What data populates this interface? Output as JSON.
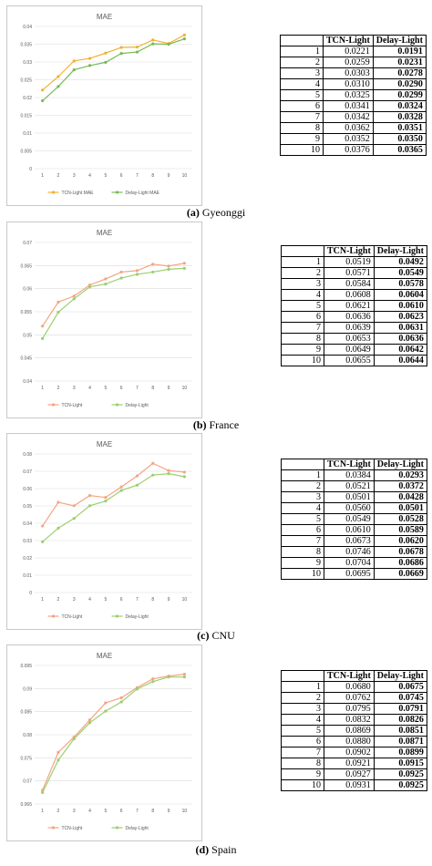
{
  "table_headers": {
    "blank": "",
    "tcn": "TCN-Light",
    "delay": "Delay-Light"
  },
  "colors": {
    "tcn": "#f2b134",
    "delay": "#77bb55",
    "tcn_b": "#f4a582",
    "delay_b": "#9ccf6f",
    "grid": "#d9d9d9",
    "axis_text": "#595959"
  },
  "panels": [
    {
      "caption": {
        "letter": "(a)",
        "name": "Gyeonggi"
      },
      "chart_data": {
        "type": "line",
        "title": "MAE",
        "x": [
          1,
          2,
          3,
          4,
          5,
          6,
          7,
          8,
          9,
          10
        ],
        "ylim": [
          0,
          0.04
        ],
        "yticks": [
          0,
          0.005,
          0.01,
          0.015,
          0.02,
          0.025,
          0.03,
          0.035,
          0.04
        ],
        "ytick_labels": [
          "0",
          "0.005",
          "0.01",
          "0.015",
          "0.02",
          "0.025",
          "0.03",
          "0.035",
          "0.04"
        ],
        "legend": "bottom",
        "series": [
          {
            "name": "TCN-Light MAE",
            "values": [
              0.0221,
              0.0259,
              0.0303,
              0.031,
              0.0325,
              0.0341,
              0.0342,
              0.0362,
              0.0352,
              0.0376
            ]
          },
          {
            "name": "Delay-Light MAE",
            "values": [
              0.0191,
              0.0231,
              0.0278,
              0.029,
              0.0299,
              0.0324,
              0.0328,
              0.0351,
              0.035,
              0.0365
            ]
          }
        ]
      },
      "rows": [
        {
          "idx": "1",
          "tcn": "0.0221",
          "delay": "0.0191"
        },
        {
          "idx": "2",
          "tcn": "0.0259",
          "delay": "0.0231"
        },
        {
          "idx": "3",
          "tcn": "0.0303",
          "delay": "0.0278"
        },
        {
          "idx": "4",
          "tcn": "0.0310",
          "delay": "0.0290"
        },
        {
          "idx": "5",
          "tcn": "0.0325",
          "delay": "0.0299"
        },
        {
          "idx": "6",
          "tcn": "0.0341",
          "delay": "0.0324"
        },
        {
          "idx": "7",
          "tcn": "0.0342",
          "delay": "0.0328"
        },
        {
          "idx": "8",
          "tcn": "0.0362",
          "delay": "0.0351"
        },
        {
          "idx": "9",
          "tcn": "0.0352",
          "delay": "0.0350"
        },
        {
          "idx": "10",
          "tcn": "0.0376",
          "delay": "0.0365"
        }
      ]
    },
    {
      "caption": {
        "letter": "(b)",
        "name": "France"
      },
      "chart_data": {
        "type": "line",
        "title": "MAE",
        "x": [
          1,
          2,
          3,
          4,
          5,
          6,
          7,
          8,
          9,
          10
        ],
        "ylim": [
          0.04,
          0.07
        ],
        "yticks": [
          0.04,
          0.045,
          0.05,
          0.055,
          0.06,
          0.065,
          0.07
        ],
        "ytick_labels": [
          "0.04",
          "0.045",
          "0.05",
          "0.055",
          "0.06",
          "0.065",
          "0.07"
        ],
        "legend": "bottom",
        "series": [
          {
            "name": "TCN-Light",
            "values": [
              0.0519,
              0.0571,
              0.0584,
              0.0608,
              0.0621,
              0.0636,
              0.0639,
              0.0653,
              0.0649,
              0.0655
            ]
          },
          {
            "name": "Delay-Light",
            "values": [
              0.0492,
              0.0549,
              0.0578,
              0.0604,
              0.061,
              0.0623,
              0.0631,
              0.0636,
              0.0642,
              0.0644
            ]
          }
        ]
      },
      "rows": [
        {
          "idx": "1",
          "tcn": "0.0519",
          "delay": "0.0492"
        },
        {
          "idx": "2",
          "tcn": "0.0571",
          "delay": "0.0549"
        },
        {
          "idx": "3",
          "tcn": "0.0584",
          "delay": "0.0578"
        },
        {
          "idx": "4",
          "tcn": "0.0608",
          "delay": "0.0604"
        },
        {
          "idx": "5",
          "tcn": "0.0621",
          "delay": "0.0610"
        },
        {
          "idx": "6",
          "tcn": "0.0636",
          "delay": "0.0623"
        },
        {
          "idx": "7",
          "tcn": "0.0639",
          "delay": "0.0631"
        },
        {
          "idx": "8",
          "tcn": "0.0653",
          "delay": "0.0636"
        },
        {
          "idx": "9",
          "tcn": "0.0649",
          "delay": "0.0642"
        },
        {
          "idx": "10",
          "tcn": "0.0655",
          "delay": "0.0644"
        }
      ]
    },
    {
      "caption": {
        "letter": "(c)",
        "name": "CNU"
      },
      "chart_data": {
        "type": "line",
        "title": "MAE",
        "x": [
          1,
          2,
          3,
          4,
          5,
          6,
          7,
          8,
          9,
          10
        ],
        "ylim": [
          0,
          0.08
        ],
        "yticks": [
          0,
          0.01,
          0.02,
          0.03,
          0.04,
          0.05,
          0.06,
          0.07,
          0.08
        ],
        "ytick_labels": [
          "0",
          "0.01",
          "0.02",
          "0.03",
          "0.04",
          "0.05",
          "0.06",
          "0.07",
          "0.08"
        ],
        "legend": "bottom",
        "series": [
          {
            "name": "TCN-Light",
            "values": [
              0.0384,
              0.0521,
              0.0501,
              0.056,
              0.0549,
              0.061,
              0.0673,
              0.0746,
              0.0704,
              0.0695
            ]
          },
          {
            "name": "Delay-Light",
            "values": [
              0.0293,
              0.0372,
              0.0428,
              0.0501,
              0.0528,
              0.0589,
              0.062,
              0.0678,
              0.0686,
              0.0669
            ]
          }
        ]
      },
      "rows": [
        {
          "idx": "1",
          "tcn": "0.0384",
          "delay": "0.0293"
        },
        {
          "idx": "2",
          "tcn": "0.0521",
          "delay": "0.0372"
        },
        {
          "idx": "3",
          "tcn": "0.0501",
          "delay": "0.0428"
        },
        {
          "idx": "4",
          "tcn": "0.0560",
          "delay": "0.0501"
        },
        {
          "idx": "5",
          "tcn": "0.0549",
          "delay": "0.0528"
        },
        {
          "idx": "6",
          "tcn": "0.0610",
          "delay": "0.0589"
        },
        {
          "idx": "7",
          "tcn": "0.0673",
          "delay": "0.0620"
        },
        {
          "idx": "8",
          "tcn": "0.0746",
          "delay": "0.0678"
        },
        {
          "idx": "9",
          "tcn": "0.0704",
          "delay": "0.0686"
        },
        {
          "idx": "10",
          "tcn": "0.0695",
          "delay": "0.0669"
        }
      ]
    },
    {
      "caption": {
        "letter": "(d)",
        "name": "Spain"
      },
      "chart_data": {
        "type": "line",
        "title": "MAE",
        "x": [
          1,
          2,
          3,
          4,
          5,
          6,
          7,
          8,
          9,
          10
        ],
        "ylim": [
          0.065,
          0.095
        ],
        "yticks": [
          0.065,
          0.07,
          0.075,
          0.08,
          0.085,
          0.09,
          0.095
        ],
        "ytick_labels": [
          "0.065",
          "0.07",
          "0.075",
          "0.08",
          "0.085",
          "0.09",
          "0.095"
        ],
        "legend": "bottom",
        "series": [
          {
            "name": "TCN-Light",
            "values": [
              0.068,
              0.0762,
              0.0795,
              0.0832,
              0.0869,
              0.088,
              0.0902,
              0.0921,
              0.0927,
              0.0931
            ]
          },
          {
            "name": "Delay-Light",
            "values": [
              0.0675,
              0.0745,
              0.0791,
              0.0826,
              0.0851,
              0.0871,
              0.0899,
              0.0915,
              0.0925,
              0.0925
            ]
          }
        ]
      },
      "rows": [
        {
          "idx": "1",
          "tcn": "0.0680",
          "delay": "0.0675"
        },
        {
          "idx": "2",
          "tcn": "0.0762",
          "delay": "0.0745"
        },
        {
          "idx": "3",
          "tcn": "0.0795",
          "delay": "0.0791"
        },
        {
          "idx": "4",
          "tcn": "0.0832",
          "delay": "0.0826"
        },
        {
          "idx": "5",
          "tcn": "0.0869",
          "delay": "0.0851"
        },
        {
          "idx": "6",
          "tcn": "0.0880",
          "delay": "0.0871"
        },
        {
          "idx": "7",
          "tcn": "0.0902",
          "delay": "0.0899"
        },
        {
          "idx": "8",
          "tcn": "0.0921",
          "delay": "0.0915"
        },
        {
          "idx": "9",
          "tcn": "0.0927",
          "delay": "0.0925"
        },
        {
          "idx": "10",
          "tcn": "0.0931",
          "delay": "0.0925"
        }
      ]
    }
  ]
}
